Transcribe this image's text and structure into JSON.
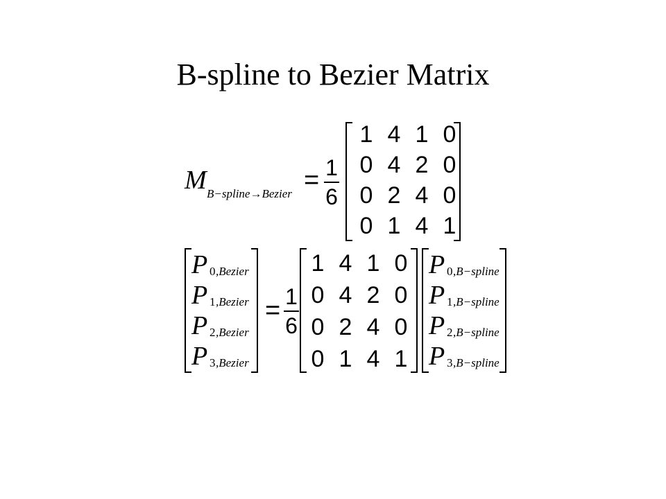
{
  "slide": {
    "title": "B-spline to Bezier Matrix"
  },
  "equation1": {
    "lhs_symbol": "M",
    "lhs_subscript": "B−spline→Bezier",
    "equals": "=",
    "fraction": {
      "numerator": "1",
      "denominator": "6"
    },
    "matrix": [
      [
        "1",
        "4",
        "1",
        "0"
      ],
      [
        "0",
        "4",
        "2",
        "0"
      ],
      [
        "0",
        "2",
        "4",
        "0"
      ],
      [
        "0",
        "1",
        "4",
        "1"
      ]
    ]
  },
  "equation2": {
    "lhs_vector": [
      {
        "symbol": "P",
        "index": "0",
        "subscript": ",Bezier"
      },
      {
        "symbol": "P",
        "index": "1",
        "subscript": ",Bezier"
      },
      {
        "symbol": "P",
        "index": "2",
        "subscript": ",Bezier"
      },
      {
        "symbol": "P",
        "index": "3",
        "subscript": ",Bezier"
      }
    ],
    "equals": "=",
    "fraction": {
      "numerator": "1",
      "denominator": "6"
    },
    "matrix": [
      [
        "1",
        "4",
        "1",
        "0"
      ],
      [
        "0",
        "4",
        "2",
        "0"
      ],
      [
        "0",
        "2",
        "4",
        "0"
      ],
      [
        "0",
        "1",
        "4",
        "1"
      ]
    ],
    "rhs_vector": [
      {
        "symbol": "P",
        "index": "0",
        "subscript": ",B−spline"
      },
      {
        "symbol": "P",
        "index": "1",
        "subscript": ",B−spline"
      },
      {
        "symbol": "P",
        "index": "2",
        "subscript": ",B−spline"
      },
      {
        "symbol": "P",
        "index": "3",
        "subscript": ",B−spline"
      }
    ]
  }
}
